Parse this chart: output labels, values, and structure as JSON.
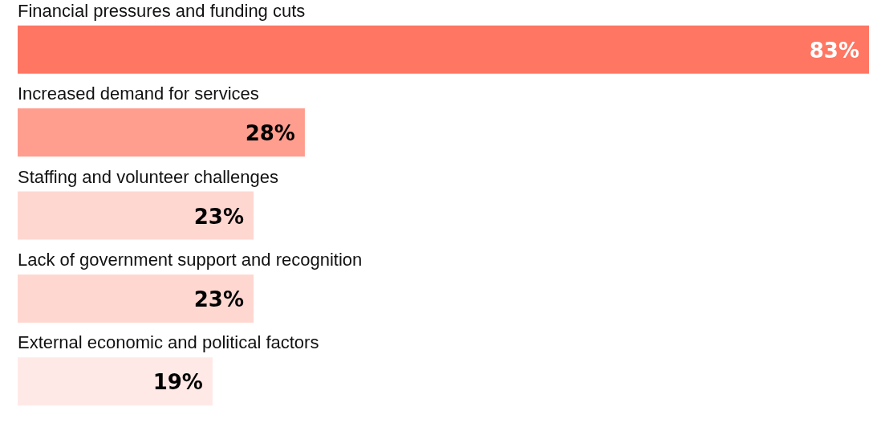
{
  "chart_data": {
    "type": "bar",
    "orientation": "horizontal",
    "categories": [
      "Financial pressures and funding cuts",
      "Increased demand for services",
      "Staffing and volunteer challenges",
      "Lack of government support and recognition",
      "External economic and political factors"
    ],
    "values": [
      83,
      28,
      23,
      23,
      19
    ],
    "value_labels": [
      "83%",
      "28%",
      "23%",
      "23%",
      "19%"
    ],
    "colors": [
      "#ff7663",
      "#ff9d8e",
      "#ffd7d1",
      "#ffd7d1",
      "#ffe9e6"
    ]
  }
}
